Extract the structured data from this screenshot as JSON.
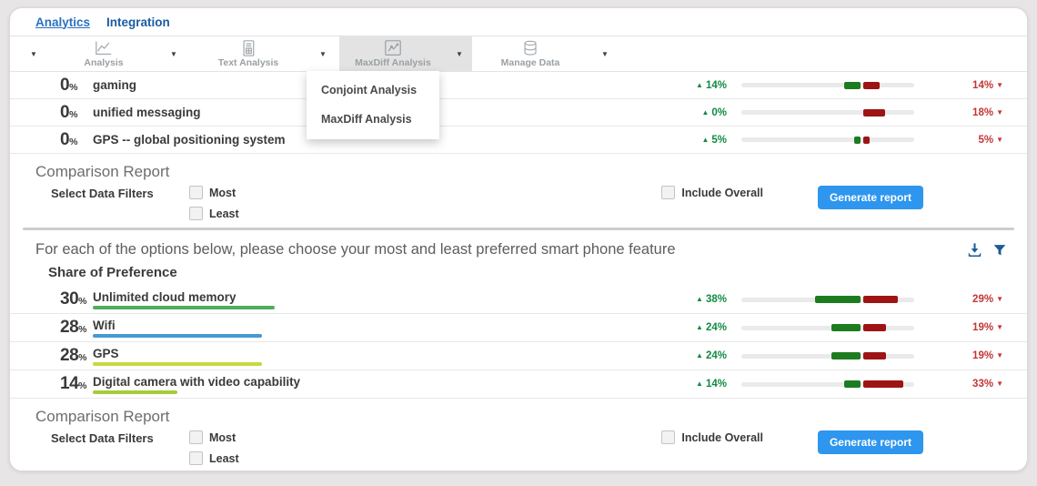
{
  "tabs": {
    "analytics": "Analytics",
    "integration": "Integration"
  },
  "toolbar": {
    "items": [
      {
        "label": "Analysis"
      },
      {
        "label": "Text Analysis"
      },
      {
        "label": "MaxDiff Analysis"
      },
      {
        "label": "Manage Data"
      }
    ]
  },
  "dropdown": {
    "items": [
      "Conjoint Analysis",
      "MaxDiff Analysis"
    ]
  },
  "glyphs": {
    "percent": "%",
    "up_arrow": "▲",
    "down_arrow": "▼",
    "caret": "▼"
  },
  "sections": [
    {
      "rows": [
        {
          "value": "0",
          "pct": 0,
          "label": "gaming",
          "gain_label": "14%",
          "gain_pct": 14,
          "loss_label": "14%",
          "loss_pct": 14
        },
        {
          "value": "0",
          "pct": 0,
          "label": "unified messaging",
          "gain_label": "0%",
          "gain_pct": 0,
          "loss_label": "18%",
          "loss_pct": 18
        },
        {
          "value": "0",
          "pct": 0,
          "label": "GPS -- global positioning system",
          "gain_label": "5%",
          "gain_pct": 5,
          "loss_label": "5%",
          "loss_pct": 5
        }
      ]
    },
    {
      "question": "For each of the options below, please choose your most and least preferred smart phone feature",
      "title": "Share of Preference",
      "rows": [
        {
          "value": "30",
          "pct": 30,
          "label": "Unlimited cloud memory",
          "underline_color": "#4fae5c",
          "gain_label": "38%",
          "gain_pct": 38,
          "loss_label": "29%",
          "loss_pct": 29
        },
        {
          "value": "28",
          "pct": 28,
          "label": "Wifi",
          "underline_color": "#4599d4",
          "gain_label": "24%",
          "gain_pct": 24,
          "loss_label": "19%",
          "loss_pct": 19
        },
        {
          "value": "28",
          "pct": 28,
          "label": "GPS",
          "underline_color": "#c6da41",
          "gain_label": "24%",
          "gain_pct": 24,
          "loss_label": "19%",
          "loss_pct": 19
        },
        {
          "value": "14",
          "pct": 14,
          "label": "Digital camera with video capability",
          "underline_color": "#a5cd3b",
          "gain_label": "14%",
          "gain_pct": 14,
          "loss_label": "33%",
          "loss_pct": 33
        }
      ]
    }
  ],
  "comparison": {
    "title": "Comparison Report",
    "select_label": "Select Data Filters",
    "filters": [
      "Most",
      "Least"
    ],
    "include_overall": "Include Overall",
    "generate_label": "Generate report"
  },
  "colors": {
    "bar_green": "#1c7c1f",
    "bar_red": "#9e1414",
    "gain_text": "#118a43",
    "loss_text": "#c43535",
    "accent_blue": "#2e96ee",
    "icon_blue": "#1b5a97",
    "tab_blue": "#1b5ca3"
  }
}
